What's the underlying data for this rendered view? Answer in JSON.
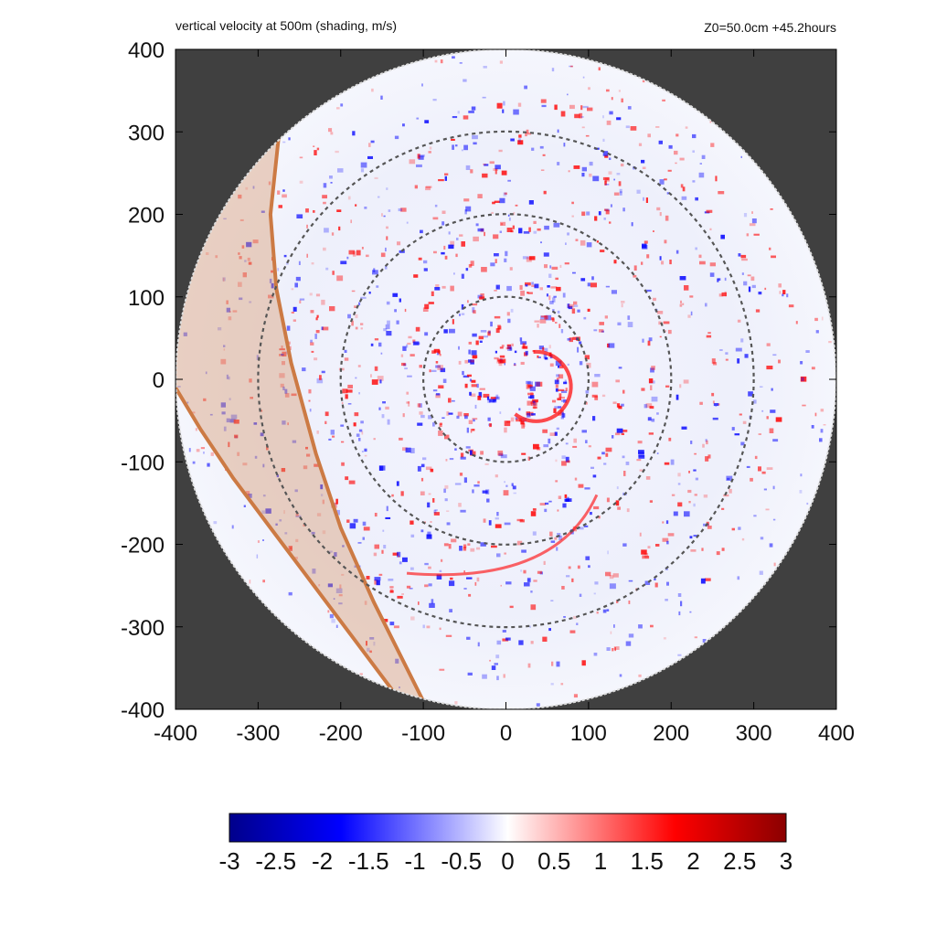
{
  "header": {
    "title_left": "vertical velocity at 500m (shading, m/s)",
    "title_right": "Z0=50.0cm  +45.2hours"
  },
  "colors": {
    "outside_domain": "#404040",
    "ring_color": "#555555",
    "band_fill": "#d9a07a",
    "band_edge": "#cc7a44",
    "negative_max": "#00008b",
    "negative_mid": "#0000ff",
    "zero": "#ffffff",
    "positive_mid": "#ff0000",
    "positive_max": "#8b0000"
  },
  "chart_data": {
    "type": "heatmap",
    "title": "vertical velocity at 500m (shading, m/s)",
    "annotation": "Z0=50.0cm  +45.2hours",
    "xlim": [
      -400,
      400
    ],
    "ylim": [
      -400,
      400
    ],
    "x_ticks": [
      "-400",
      "-300",
      "-200",
      "-100",
      "0",
      "100",
      "200",
      "300",
      "400"
    ],
    "y_ticks": [
      "400",
      "300",
      "200",
      "100",
      "0",
      "-100",
      "-200",
      "-300",
      "-400"
    ],
    "x_tick_values": [
      -400,
      -300,
      -200,
      -100,
      0,
      100,
      200,
      300,
      400
    ],
    "y_tick_values": [
      400,
      300,
      200,
      100,
      0,
      -100,
      -200,
      -300,
      -400
    ],
    "domain_radius": 400,
    "range_rings": [
      100,
      200,
      300
    ],
    "colorbar": {
      "min": -3,
      "max": 3,
      "ticks": [
        "-3",
        "-2.5",
        "-2",
        "-1.5",
        "-1",
        "-0.5",
        "0",
        "0.5",
        "1",
        "1.5",
        "2",
        "2.5",
        "3"
      ],
      "tick_values": [
        -3,
        -2.5,
        -2,
        -1.5,
        -1,
        -0.5,
        0,
        0.5,
        1,
        1.5,
        2,
        2.5,
        3
      ]
    },
    "highlighted_band": {
      "outer_edge": [
        [
          -275,
          295
        ],
        [
          -285,
          200
        ],
        [
          -278,
          110
        ],
        [
          -260,
          20
        ],
        [
          -230,
          -90
        ],
        [
          -200,
          -180
        ],
        [
          -160,
          -270
        ],
        [
          -120,
          -350
        ],
        [
          -95,
          -400
        ]
      ],
      "inner_edge": [
        [
          -400,
          -10
        ],
        [
          -370,
          -60
        ],
        [
          -330,
          -120
        ],
        [
          -285,
          -180
        ],
        [
          -240,
          -240
        ],
        [
          -195,
          -300
        ],
        [
          -150,
          -360
        ],
        [
          -120,
          -400
        ]
      ]
    },
    "eyewall_center": [
      0,
      0
    ]
  }
}
